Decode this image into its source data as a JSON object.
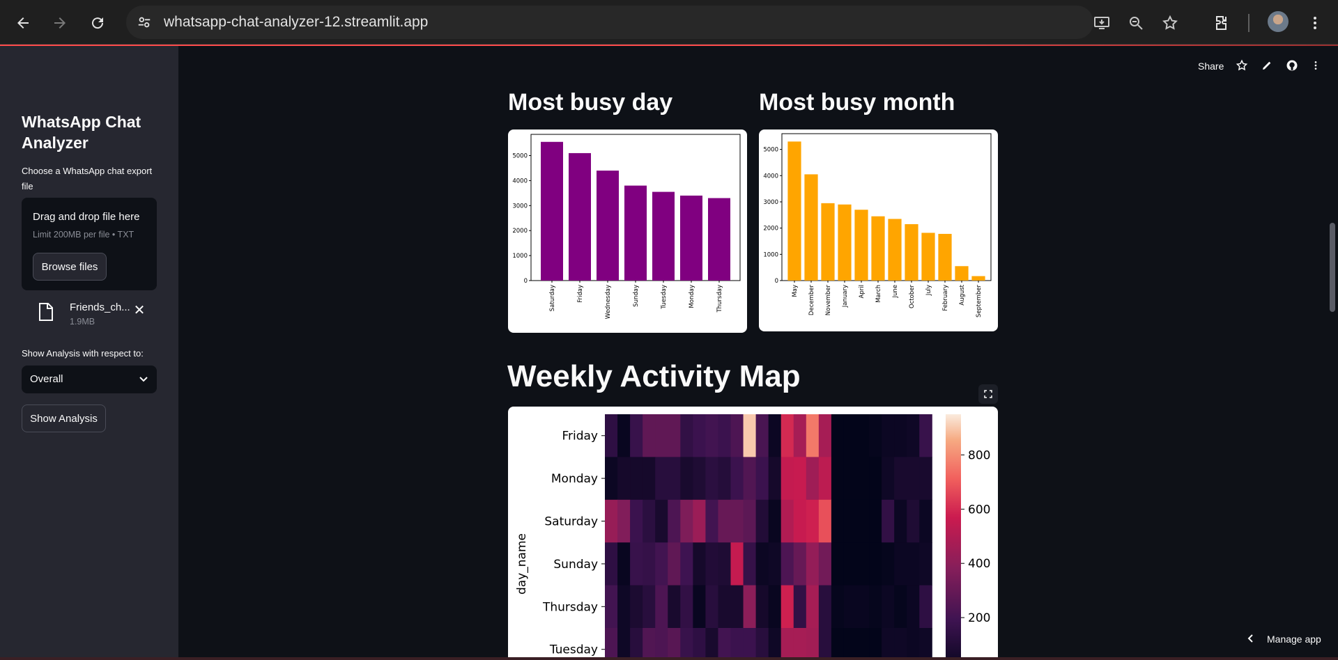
{
  "browser": {
    "url": "whatsapp-chat-analyzer-12.streamlit.app"
  },
  "toolbar": {
    "share_label": "Share"
  },
  "sidebar": {
    "title": "WhatsApp Chat Analyzer",
    "upload_label": "Choose a WhatsApp chat export file",
    "dropzone_text": "Drag and drop file here",
    "limit_text": "Limit 200MB per file • TXT",
    "browse_label": "Browse files",
    "file_name": "Friends_ch...",
    "file_size": "1.9MB",
    "analysis_label": "Show Analysis with respect to:",
    "select_value": "Overall",
    "show_button": "Show Analysis"
  },
  "main": {
    "busy_day_title": "Most busy day",
    "busy_month_title": "Most busy month",
    "weekly_title": "Weekly Activity Map"
  },
  "chart_data": [
    {
      "type": "bar",
      "color": "#800080",
      "categories": [
        "Saturday",
        "Friday",
        "Wednesday",
        "Sunday",
        "Tuesday",
        "Monday",
        "Thursday"
      ],
      "values": [
        5550,
        5100,
        4400,
        3800,
        3550,
        3400,
        3300
      ],
      "ylim": [
        0,
        5850
      ],
      "yticks": [
        0,
        1000,
        2000,
        3000,
        4000,
        5000
      ]
    },
    {
      "type": "bar",
      "color": "#ffa500",
      "categories": [
        "May",
        "December",
        "November",
        "January",
        "April",
        "March",
        "June",
        "October",
        "July",
        "February",
        "August",
        "September"
      ],
      "values": [
        5300,
        4050,
        2950,
        2900,
        2700,
        2450,
        2350,
        2150,
        1820,
        1780,
        550,
        170
      ],
      "ylim": [
        0,
        5600
      ],
      "yticks": [
        0,
        1000,
        2000,
        3000,
        4000,
        5000
      ]
    },
    {
      "type": "heatmap",
      "ylabel": "day_name",
      "rows": [
        "Friday",
        "Monday",
        "Saturday",
        "Sunday",
        "Thursday",
        "Tuesday"
      ],
      "colorbar_ticks": [
        200,
        400,
        600,
        800
      ],
      "vmin": 0,
      "vmax": 950,
      "values": [
        [
          140,
          20,
          170,
          280,
          280,
          280,
          150,
          180,
          200,
          180,
          230,
          900,
          220,
          30,
          600,
          470,
          760,
          470,
          0,
          0,
          0,
          10,
          30,
          30,
          40,
          170
        ],
        [
          30,
          60,
          60,
          60,
          120,
          120,
          70,
          90,
          130,
          110,
          180,
          240,
          180,
          60,
          550,
          560,
          450,
          530,
          0,
          0,
          0,
          0,
          40,
          70,
          70,
          70
        ],
        [
          430,
          370,
          180,
          130,
          70,
          230,
          360,
          440,
          200,
          300,
          300,
          270,
          100,
          20,
          500,
          560,
          580,
          680,
          0,
          0,
          0,
          0,
          150,
          30,
          90,
          30
        ],
        [
          140,
          20,
          170,
          160,
          200,
          280,
          190,
          60,
          100,
          90,
          550,
          160,
          30,
          40,
          230,
          300,
          420,
          330,
          0,
          0,
          0,
          0,
          10,
          30,
          30,
          40
        ],
        [
          200,
          40,
          80,
          120,
          230,
          70,
          150,
          20,
          120,
          70,
          70,
          400,
          60,
          20,
          580,
          150,
          470,
          120,
          10,
          20,
          20,
          10,
          30,
          10,
          30,
          140
        ],
        [
          230,
          40,
          120,
          240,
          230,
          260,
          170,
          140,
          70,
          200,
          180,
          180,
          120,
          40,
          470,
          470,
          460,
          120,
          0,
          0,
          0,
          0,
          40,
          40,
          30,
          40
        ]
      ]
    }
  ]
}
